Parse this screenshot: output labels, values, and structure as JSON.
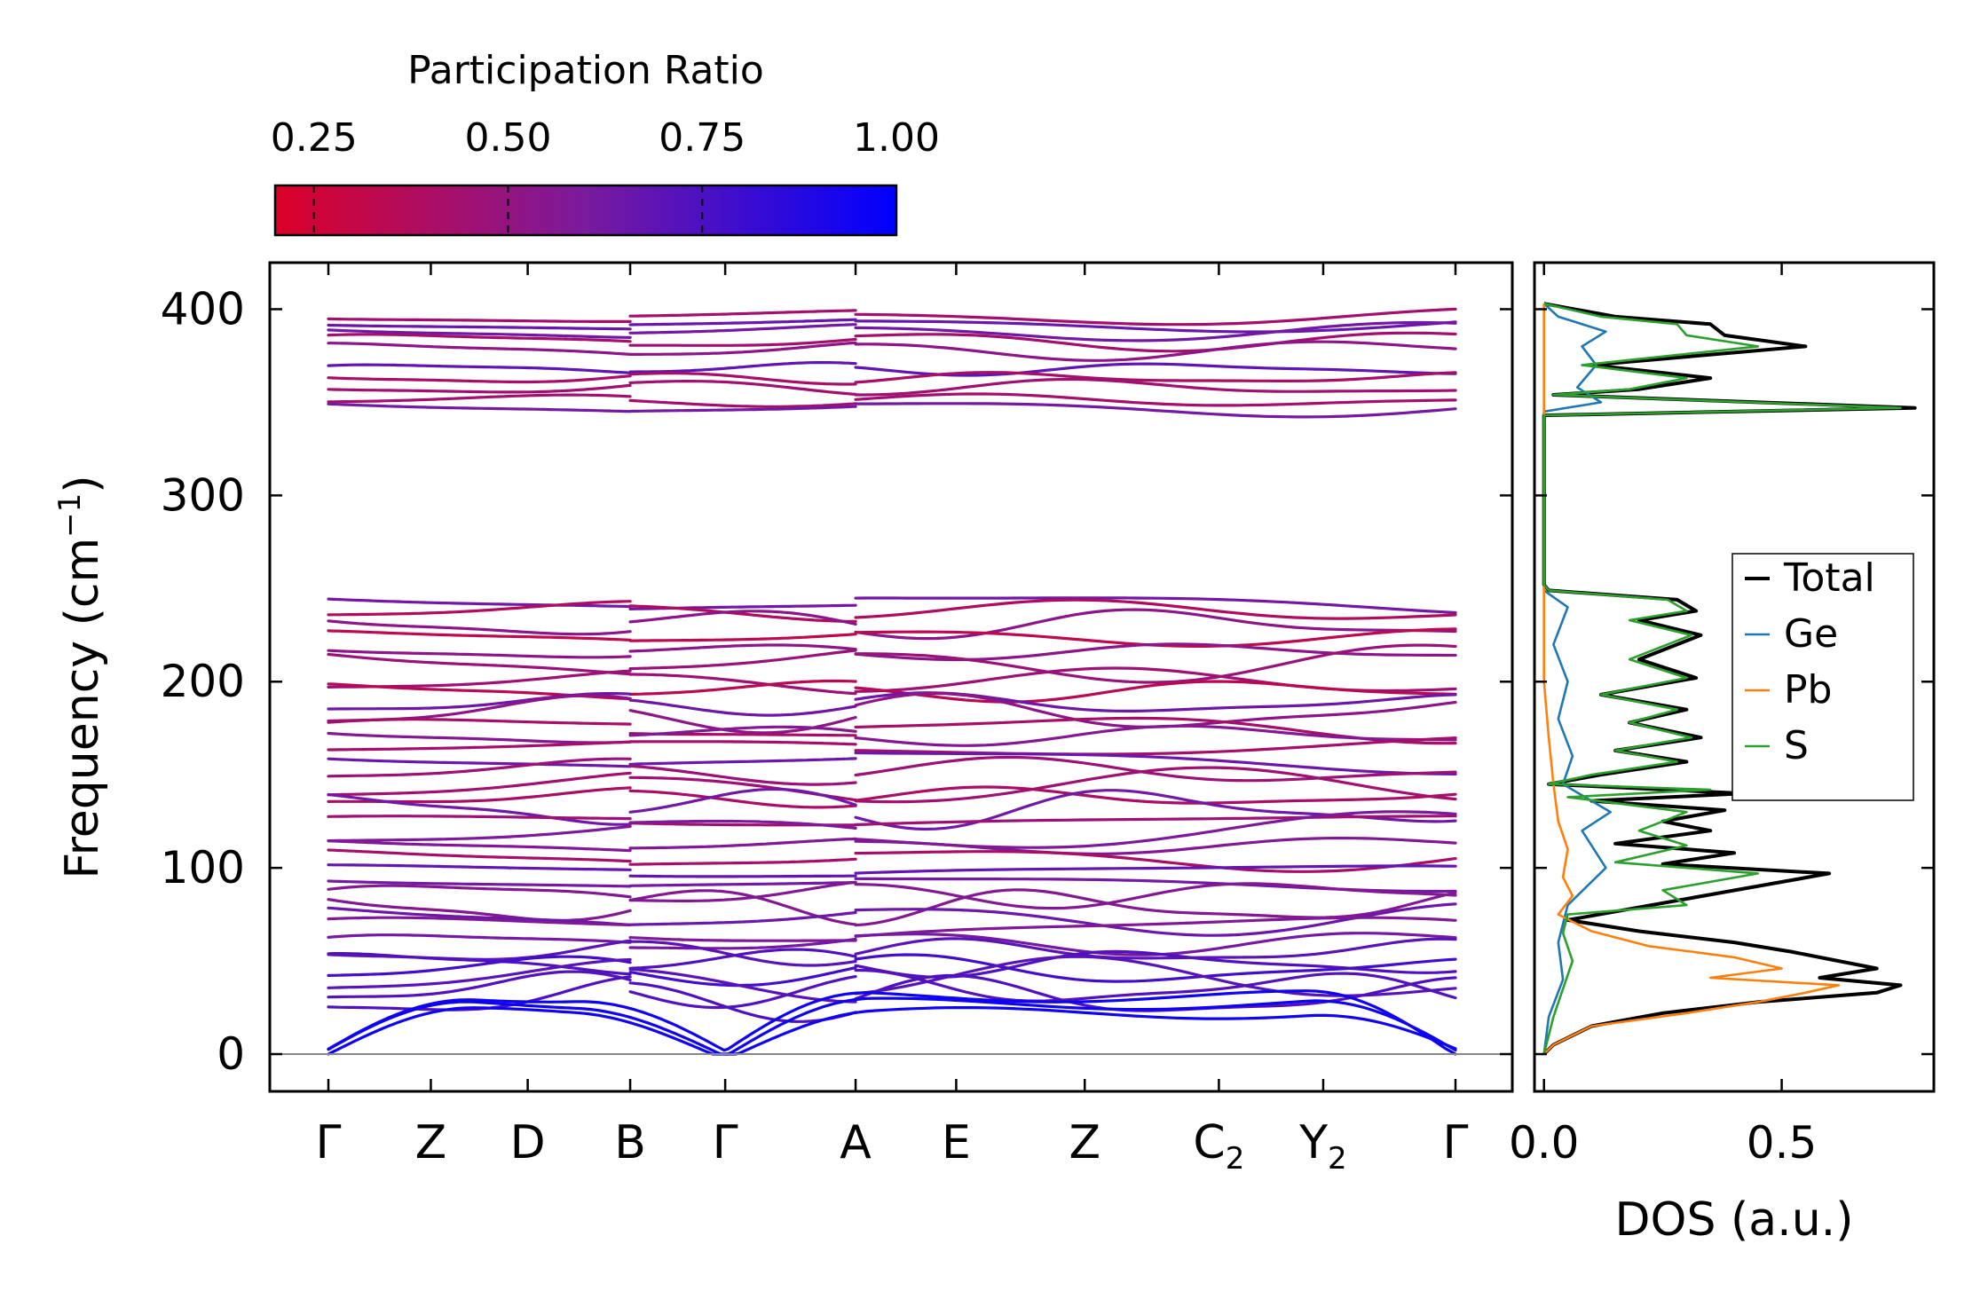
{
  "chart_data": [
    {
      "type": "line",
      "role": "phonon band structure",
      "ylabel": "Frequency (cm",
      "ylabel_sup": "−1",
      "ylabel_close": ")",
      "ylim": [
        -20,
        425
      ],
      "yticks": [
        0,
        100,
        200,
        300,
        400
      ],
      "xticks": [
        {
          "label": "Γ",
          "sub": ""
        },
        {
          "label": "Z",
          "sub": ""
        },
        {
          "label": "D",
          "sub": ""
        },
        {
          "label": "B",
          "sub": ""
        },
        {
          "label": "Γ",
          "sub": ""
        },
        {
          "label": "A",
          "sub": ""
        },
        {
          "label": "E",
          "sub": ""
        },
        {
          "label": "Z",
          "sub": ""
        },
        {
          "label": "C",
          "sub": "2"
        },
        {
          "label": "Y",
          "sub": "2"
        },
        {
          "label": "Γ",
          "sub": ""
        }
      ],
      "path_positions": [
        0,
        0.55,
        1.07,
        1.62,
        2.13,
        2.83,
        3.37,
        4.06,
        4.78,
        5.34,
        6.05
      ],
      "path_breaks": [
        1.62,
        2.83
      ],
      "colorbar": {
        "label": "Participation Ratio",
        "range": [
          0.2,
          1.0
        ],
        "ticks": [
          0.25,
          0.5,
          0.75,
          1.0
        ],
        "tick_labels": [
          "0.25",
          "0.50",
          "0.75",
          "1.00"
        ],
        "color_low": "#dc0028",
        "color_mid": "#7a1a9e",
        "color_high": "#0000ff"
      },
      "band_groups": {
        "high_optical": [
          396,
          392,
          388,
          383,
          378,
          368,
          363,
          358,
          351,
          347
        ],
        "mid_optical": [
          242,
          238,
          231,
          224,
          216,
          210,
          200,
          195,
          188,
          183,
          175,
          171,
          165,
          158,
          152
        ],
        "low_optical": [
          143,
          138,
          132,
          125,
          119,
          112,
          105,
          98,
          92,
          86,
          79,
          73,
          66,
          60,
          55,
          49,
          45,
          40,
          35,
          30
        ],
        "acoustic_max": [
          22,
          27,
          31
        ]
      },
      "zero_line": 0
    },
    {
      "type": "line",
      "role": "phonon density of states",
      "xlabel": "DOS (a.u.)",
      "xlim": [
        -0.02,
        0.82
      ],
      "xticks": [
        0.0,
        0.5
      ],
      "xtick_labels": [
        "0.0",
        "0.5"
      ],
      "ylim": [
        -20,
        425
      ],
      "series": [
        {
          "name": "Total",
          "color": "#000000",
          "points": [
            [
              0,
              0
            ],
            [
              0.02,
              5
            ],
            [
              0.1,
              15
            ],
            [
              0.25,
              22
            ],
            [
              0.45,
              28
            ],
            [
              0.7,
              33
            ],
            [
              0.75,
              37
            ],
            [
              0.58,
              41
            ],
            [
              0.7,
              46
            ],
            [
              0.62,
              50
            ],
            [
              0.52,
              55
            ],
            [
              0.4,
              60
            ],
            [
              0.2,
              66
            ],
            [
              0.05,
              72
            ],
            [
              0.6,
              97
            ],
            [
              0.25,
              102
            ],
            [
              0.4,
              108
            ],
            [
              0.15,
              113
            ],
            [
              0.35,
              120
            ],
            [
              0.25,
              125
            ],
            [
              0.38,
              131
            ],
            [
              0.1,
              136
            ],
            [
              0.42,
              140
            ],
            [
              0.01,
              145
            ],
            [
              0.12,
              150
            ],
            [
              0.3,
              157
            ],
            [
              0.15,
              163
            ],
            [
              0.33,
              170
            ],
            [
              0.18,
              178
            ],
            [
              0.3,
              185
            ],
            [
              0.12,
              193
            ],
            [
              0.32,
              202
            ],
            [
              0.2,
              212
            ],
            [
              0.33,
              225
            ],
            [
              0.2,
              233
            ],
            [
              0.32,
              238
            ],
            [
              0.28,
              244
            ],
            [
              0.01,
              249
            ],
            [
              0,
              252
            ],
            [
              0,
              343
            ],
            [
              0.78,
              347
            ],
            [
              0.02,
              354
            ],
            [
              0.2,
              357
            ],
            [
              0.35,
              363
            ],
            [
              0.1,
              370
            ],
            [
              0.55,
              380
            ],
            [
              0.38,
              386
            ],
            [
              0.35,
              392
            ],
            [
              0.15,
              396
            ],
            [
              0,
              403
            ]
          ]
        },
        {
          "name": "Ge",
          "color": "#1f77b4",
          "points": [
            [
              0,
              0
            ],
            [
              0.01,
              20
            ],
            [
              0.04,
              40
            ],
            [
              0.03,
              60
            ],
            [
              0.05,
              80
            ],
            [
              0.13,
              100
            ],
            [
              0.08,
              120
            ],
            [
              0.14,
              130
            ],
            [
              0.04,
              145
            ],
            [
              0.06,
              160
            ],
            [
              0.03,
              180
            ],
            [
              0.05,
              200
            ],
            [
              0.02,
              220
            ],
            [
              0.05,
              240
            ],
            [
              0,
              249
            ],
            [
              0,
              345
            ],
            [
              0.12,
              350
            ],
            [
              0.07,
              358
            ],
            [
              0.11,
              370
            ],
            [
              0.08,
              380
            ],
            [
              0.13,
              388
            ],
            [
              0.03,
              396
            ],
            [
              0,
              403
            ]
          ]
        },
        {
          "name": "Pb",
          "color": "#ff7f0e",
          "points": [
            [
              0,
              0
            ],
            [
              0.02,
              5
            ],
            [
              0.1,
              15
            ],
            [
              0.3,
              22
            ],
            [
              0.45,
              28
            ],
            [
              0.55,
              33
            ],
            [
              0.62,
              37
            ],
            [
              0.35,
              41
            ],
            [
              0.5,
              46
            ],
            [
              0.4,
              52
            ],
            [
              0.22,
              58
            ],
            [
              0.1,
              66
            ],
            [
              0.03,
              75
            ],
            [
              0.06,
              85
            ],
            [
              0.04,
              95
            ],
            [
              0.05,
              110
            ],
            [
              0.03,
              125
            ],
            [
              0.02,
              145
            ],
            [
              0.01,
              170
            ],
            [
              0,
              200
            ],
            [
              0,
              403
            ]
          ]
        },
        {
          "name": "S",
          "color": "#2ca02c",
          "points": [
            [
              0,
              0
            ],
            [
              0.02,
              20
            ],
            [
              0.04,
              35
            ],
            [
              0.06,
              50
            ],
            [
              0.04,
              65
            ],
            [
              0.05,
              75
            ],
            [
              0.3,
              80
            ],
            [
              0.25,
              88
            ],
            [
              0.45,
              97
            ],
            [
              0.15,
              103
            ],
            [
              0.3,
              112
            ],
            [
              0.2,
              120
            ],
            [
              0.3,
              130
            ],
            [
              0.05,
              138
            ],
            [
              0.35,
              142
            ],
            [
              0.01,
              145
            ],
            [
              0.1,
              150
            ],
            [
              0.28,
              157
            ],
            [
              0.15,
              163
            ],
            [
              0.31,
              170
            ],
            [
              0.18,
              178
            ],
            [
              0.28,
              185
            ],
            [
              0.12,
              193
            ],
            [
              0.3,
              202
            ],
            [
              0.18,
              212
            ],
            [
              0.31,
              225
            ],
            [
              0.18,
              233
            ],
            [
              0.3,
              238
            ],
            [
              0.26,
              244
            ],
            [
              0.01,
              249
            ],
            [
              0,
              252
            ],
            [
              0,
              343
            ],
            [
              0.75,
              347
            ],
            [
              0.02,
              354
            ],
            [
              0.18,
              357
            ],
            [
              0.3,
              363
            ],
            [
              0.08,
              370
            ],
            [
              0.45,
              380
            ],
            [
              0.3,
              386
            ],
            [
              0.28,
              392
            ],
            [
              0.12,
              396
            ],
            [
              0,
              403
            ]
          ]
        }
      ],
      "legend": {
        "position": "center-right",
        "entries": [
          "Total",
          "Ge",
          "Pb",
          "S"
        ]
      }
    }
  ]
}
